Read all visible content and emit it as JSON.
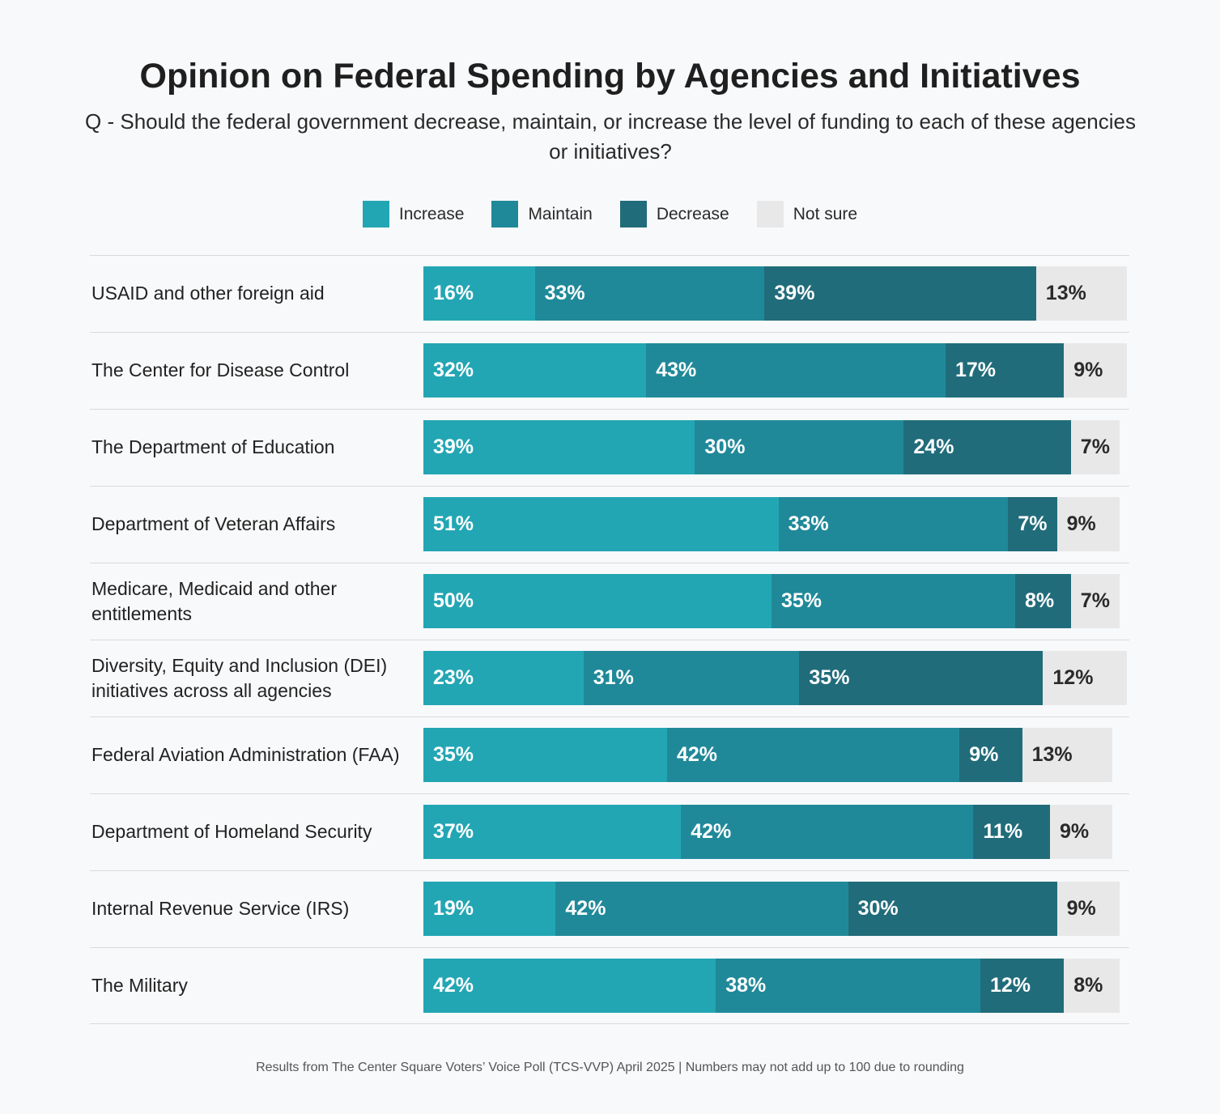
{
  "chart_data": {
    "type": "bar",
    "orientation": "horizontal",
    "stacked": true,
    "title": "Opinion on Federal Spending by Agencies and Initiatives",
    "subtitle": "Q - Should the federal government decrease, maintain, or increase the level of funding to each of these agencies or initiatives?",
    "legend_placement": "top",
    "unit": "%",
    "categories": [
      "USAID and other foreign aid",
      "The Center for Disease Control",
      "The Department of Education",
      "Department of Veteran Affairs",
      "Medicare, Medicaid and other entitlements",
      "Diversity, Equity and Inclusion (DEI) initiatives across all agencies",
      "Federal Aviation Administration (FAA)",
      "Department of Homeland Security",
      "Internal Revenue Service (IRS)",
      "The Military"
    ],
    "series": [
      {
        "name": "Increase",
        "color": "#23a6b4",
        "values": [
          16,
          32,
          39,
          51,
          50,
          23,
          35,
          37,
          19,
          42
        ]
      },
      {
        "name": "Maintain",
        "color": "#208999",
        "values": [
          33,
          43,
          30,
          33,
          35,
          31,
          42,
          42,
          42,
          38
        ]
      },
      {
        "name": "Decrease",
        "color": "#216c7a",
        "values": [
          39,
          17,
          24,
          7,
          8,
          35,
          9,
          11,
          30,
          12
        ]
      },
      {
        "name": "Not sure",
        "color": "#e8e8e8",
        "values": [
          13,
          9,
          7,
          9,
          7,
          12,
          13,
          9,
          9,
          8
        ]
      }
    ],
    "footer": "Results from The Center Square Voters’ Voice Poll (TCS-VVP) April 2025 | Numbers may not add up to 100 due to rounding"
  }
}
